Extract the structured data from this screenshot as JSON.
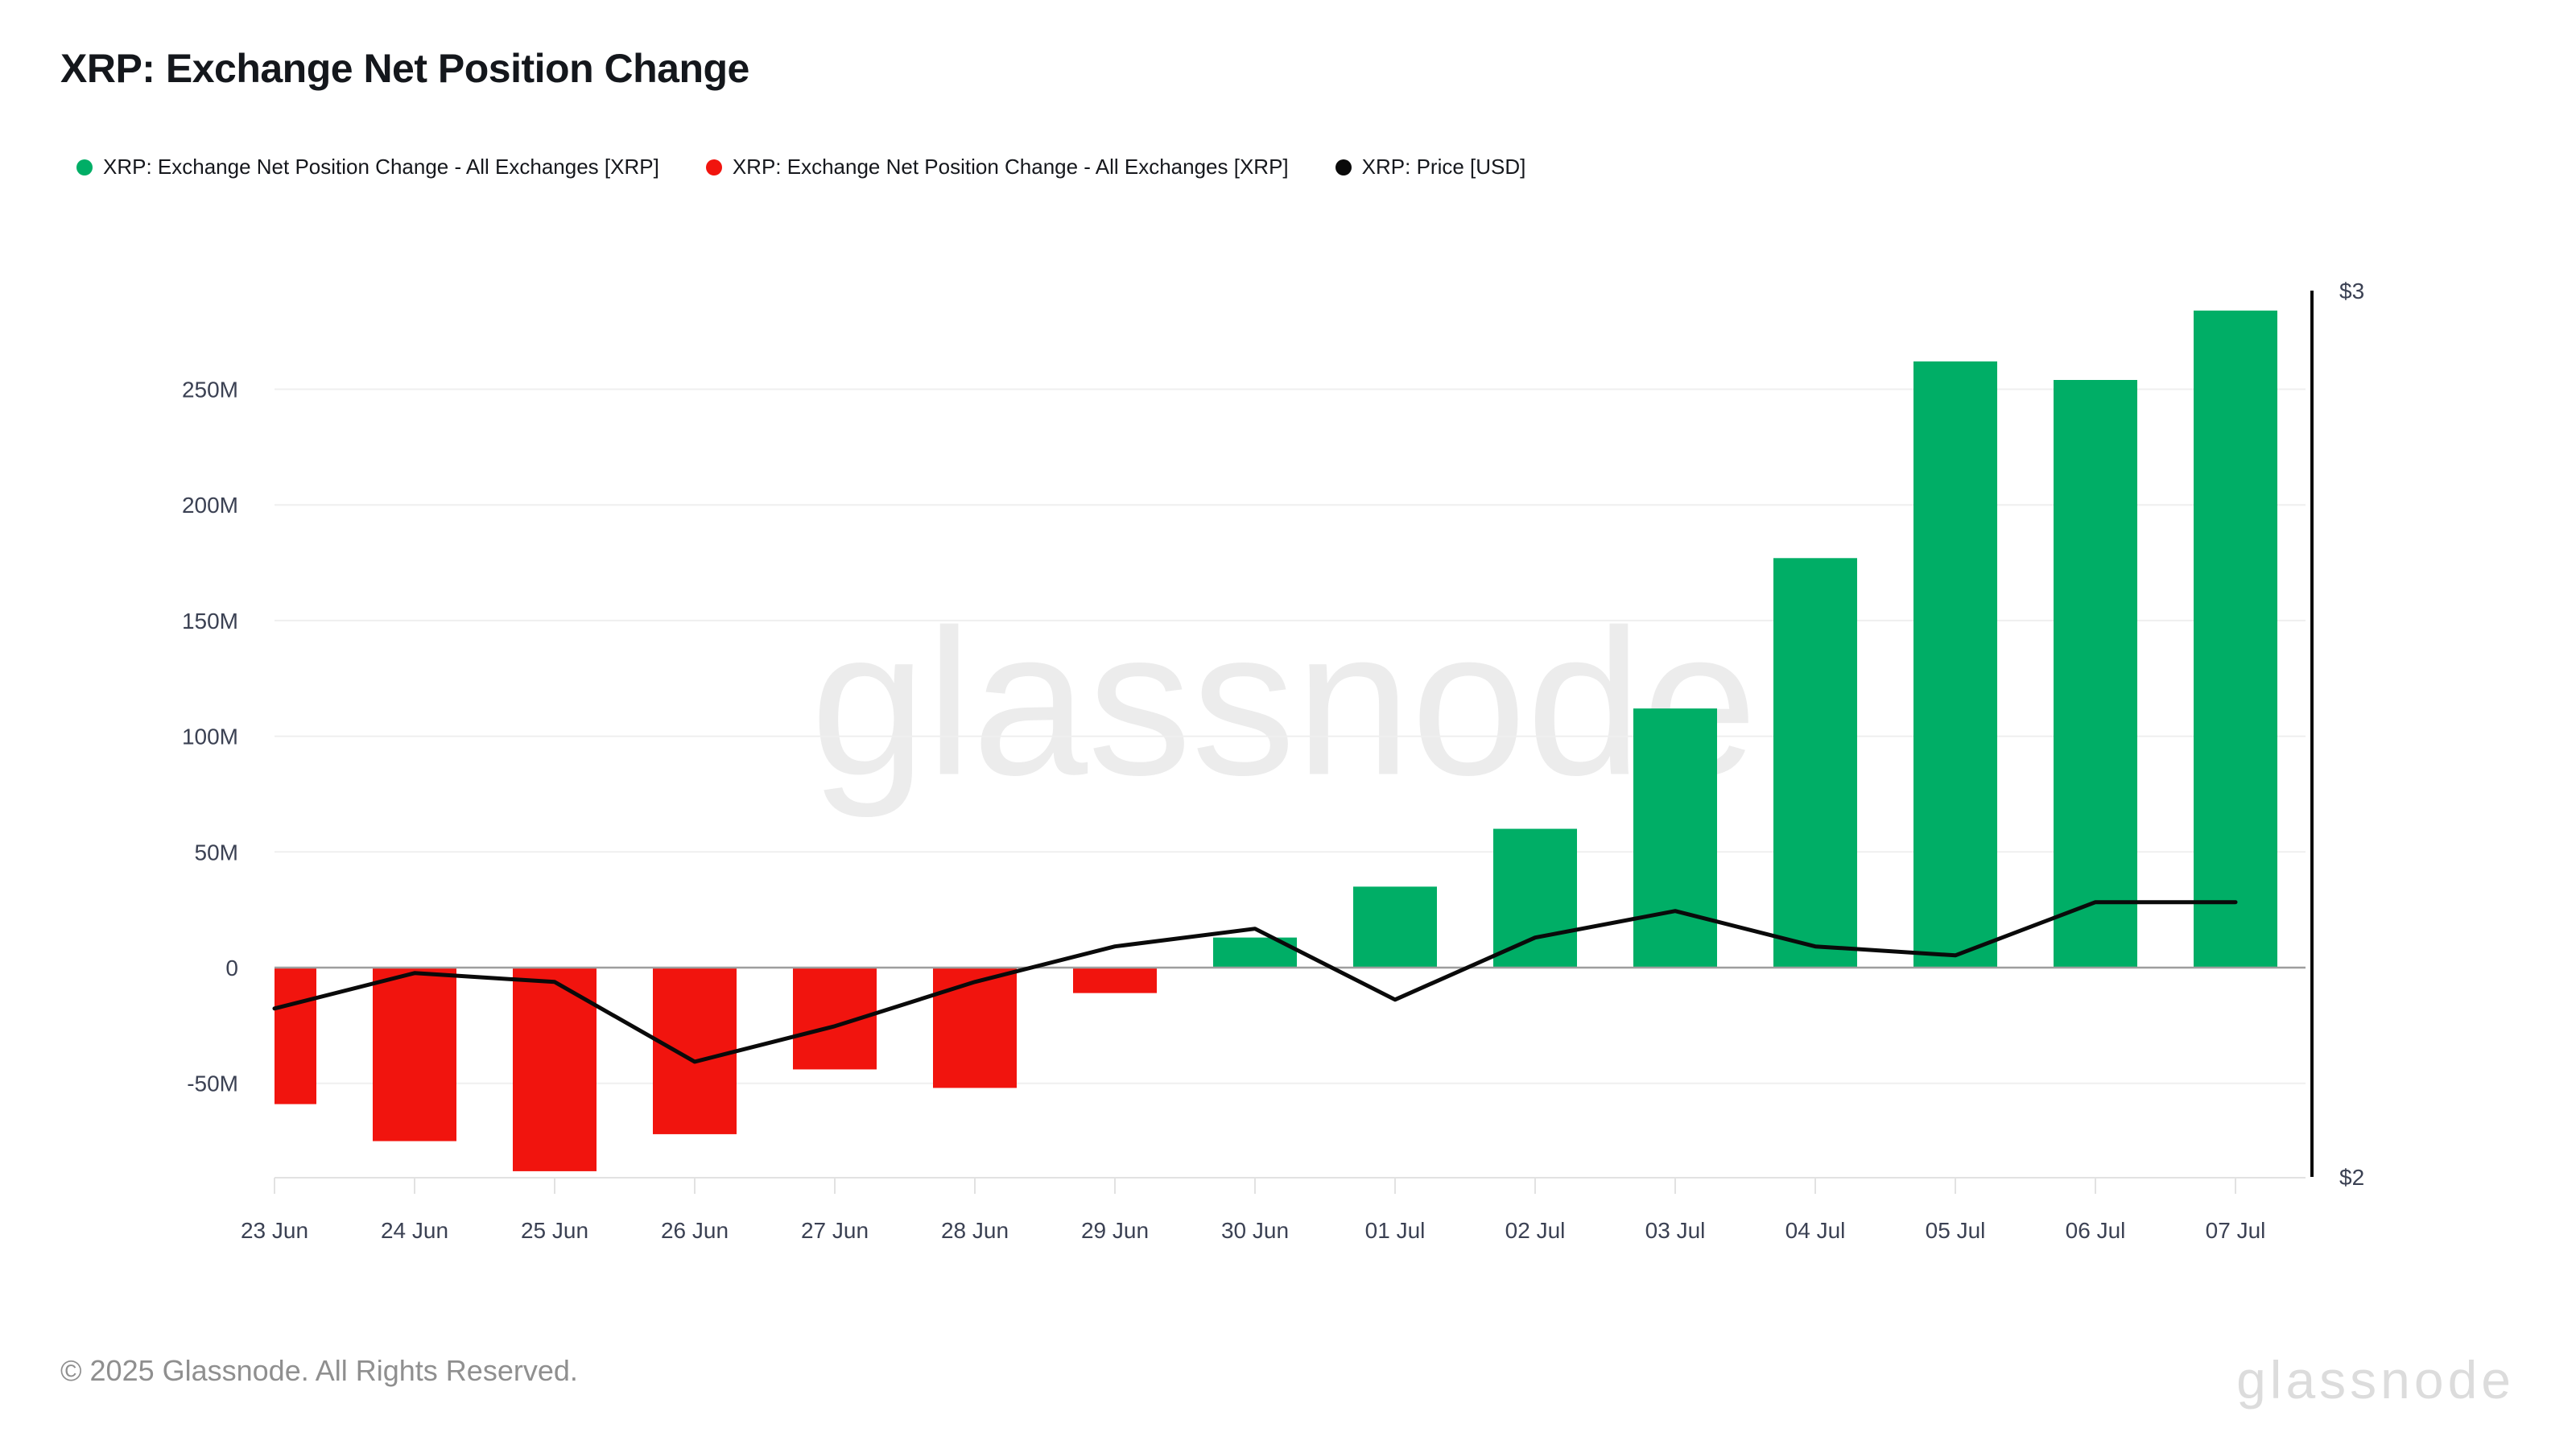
{
  "page": {
    "title": "XRP: Exchange Net Position Change"
  },
  "legend": {
    "items": [
      {
        "label": "XRP: Exchange Net Position Change - All Exchanges [XRP]",
        "color": "#00ae66",
        "marker": "dot"
      },
      {
        "label": "XRP: Exchange Net Position Change - All Exchanges [XRP]",
        "color": "#f1140e",
        "marker": "dot"
      },
      {
        "label": "XRP: Price [USD]",
        "color": "#0a0a0a",
        "marker": "dot"
      }
    ]
  },
  "chart_data": {
    "type": "bar",
    "subtype": "bar-with-line-overlay",
    "title": "XRP: Exchange Net Position Change",
    "categories": [
      "23 Jun",
      "24 Jun",
      "25 Jun",
      "26 Jun",
      "27 Jun",
      "28 Jun",
      "29 Jun",
      "30 Jun",
      "01 Jul",
      "02 Jul",
      "03 Jul",
      "04 Jul",
      "05 Jul",
      "06 Jul",
      "07 Jul"
    ],
    "series": [
      {
        "name": "XRP: Exchange Net Position Change - All Exchanges [XRP]",
        "type": "bar",
        "axis": "left",
        "unit": "XRP",
        "values_millions": [
          -59,
          -75,
          -88,
          -72,
          -44,
          -52,
          -11,
          13,
          35,
          60,
          112,
          177,
          262,
          254,
          284
        ],
        "positive_color": "#00ae66",
        "negative_color": "#f1140e"
      },
      {
        "name": "XRP: Price [USD]",
        "type": "line",
        "axis": "right",
        "unit": "USD",
        "values_usd": [
          2.19,
          2.23,
          2.22,
          2.13,
          2.17,
          2.22,
          2.26,
          2.28,
          2.2,
          2.27,
          2.3,
          2.26,
          2.25,
          2.31,
          2.31
        ],
        "color": "#0a0a0a"
      }
    ],
    "left_axis": {
      "tick_labels": [
        "250M",
        "200M",
        "150M",
        "100M",
        "50M",
        "0",
        "-50M"
      ],
      "tick_values_millions": [
        250,
        200,
        150,
        100,
        50,
        0,
        -50
      ],
      "range_millions": [
        -91,
        297
      ],
      "grid": true
    },
    "right_axis": {
      "tick_labels": [
        "$3",
        "$2"
      ],
      "tick_values": [
        3,
        2
      ],
      "range": [
        2,
        3
      ]
    },
    "legend_position": "top-left",
    "zero_line": true
  },
  "watermark": {
    "text": "glassnode"
  },
  "footer": {
    "copyright": "© 2025 Glassnode. All Rights Reserved.",
    "brand": "glassnode"
  }
}
